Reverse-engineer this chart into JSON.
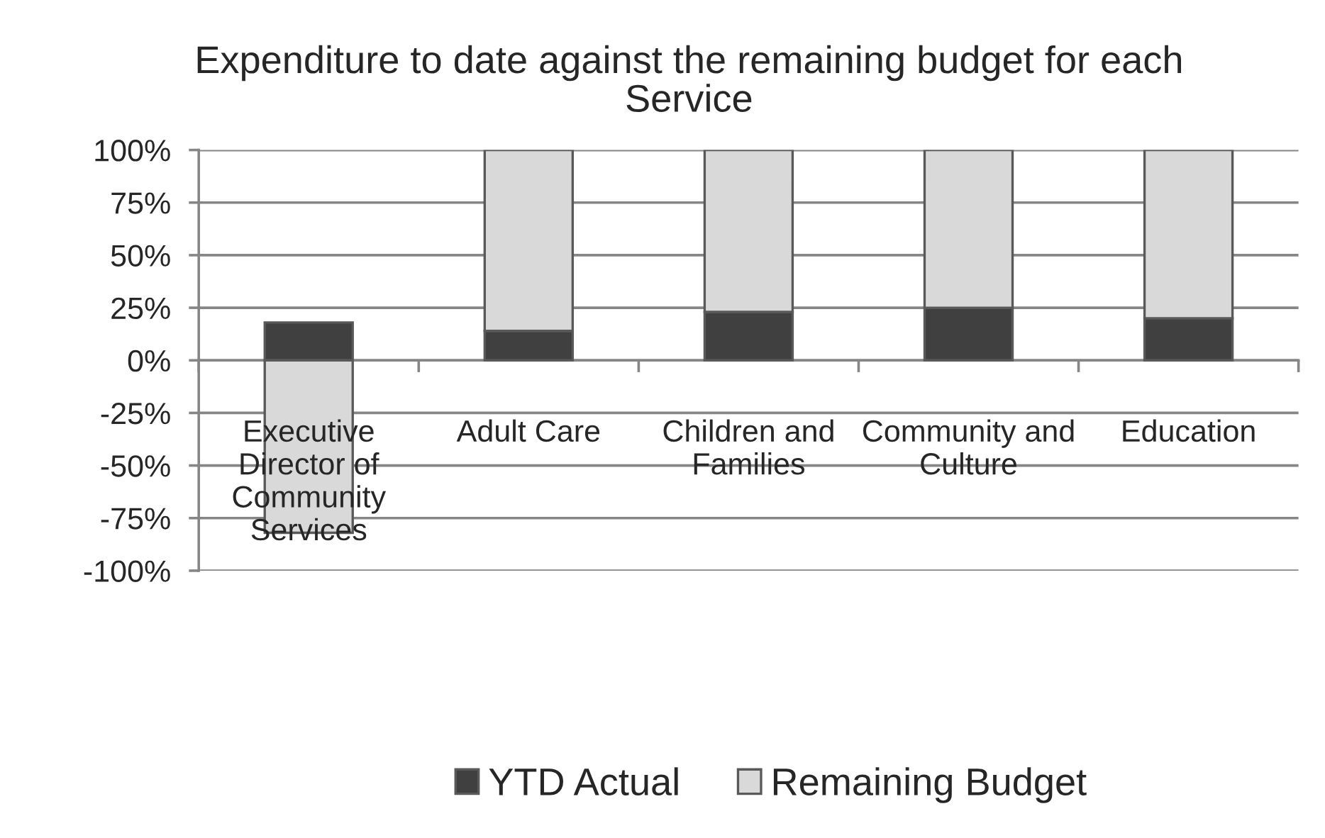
{
  "chart_data": {
    "type": "bar",
    "title": "Expenditure to date against the remaining budget for each Service",
    "categories": [
      "Executive Director of Community Services",
      "Adult Care",
      "Children and Families",
      "Community and Culture",
      "Education"
    ],
    "series": [
      {
        "name": "YTD Actual",
        "color": "#404040",
        "values": [
          18,
          14,
          23,
          25,
          20
        ]
      },
      {
        "name": "Remaining Budget",
        "color": "#d9d9d9",
        "values": [
          -82,
          86,
          77,
          75,
          80
        ]
      }
    ],
    "stacked": true,
    "ylim": [
      -100,
      100
    ],
    "yticks": [
      {
        "value": -100,
        "label": "-100%"
      },
      {
        "value": -75,
        "label": "-75%"
      },
      {
        "value": -50,
        "label": "-50%"
      },
      {
        "value": -25,
        "label": "-25%"
      },
      {
        "value": 0,
        "label": "0%"
      },
      {
        "value": 25,
        "label": "25%"
      },
      {
        "value": 50,
        "label": "50%"
      },
      {
        "value": 75,
        "label": "75%"
      },
      {
        "value": 100,
        "label": "100%"
      }
    ],
    "grid": "y",
    "legend": "bottom"
  }
}
